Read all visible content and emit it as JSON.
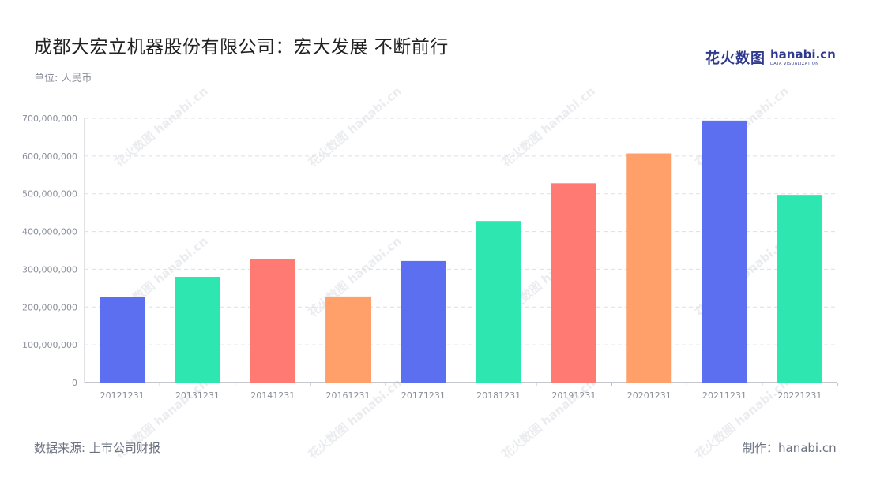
{
  "header": {
    "title": "成都大宏立机器股份有限公司：宏大发展 不断前行",
    "unit": "单位: 人民币"
  },
  "logo": {
    "cn": "花火数图",
    "en": "hanabi.cn",
    "en_sub": "DATA VISUALIZATION"
  },
  "footer": {
    "source": "数据来源: 上市公司财报",
    "credit": "制作：hanabi.cn"
  },
  "watermark_text": "花火数图 hanabi.cn",
  "chart_data": {
    "type": "bar",
    "title": "成都大宏立机器股份有限公司：宏大发展 不断前行",
    "xlabel": "",
    "ylabel": "",
    "categories": [
      "20121231",
      "20131231",
      "20141231",
      "20161231",
      "20171231",
      "20181231",
      "20191231",
      "20201231",
      "20211231",
      "20221231"
    ],
    "values": [
      226000000,
      280000000,
      327000000,
      228000000,
      322000000,
      428000000,
      528000000,
      607000000,
      694000000,
      497000000
    ],
    "bar_colors": [
      "#5b6ff0",
      "#2ee6b0",
      "#ff7a72",
      "#ffa06b",
      "#5b6ff0",
      "#2ee6b0",
      "#ff7a72",
      "#ffa06b",
      "#5b6ff0",
      "#2ee6b0"
    ],
    "ylim": [
      0,
      700000000
    ],
    "yticks": [
      0,
      100000000,
      200000000,
      300000000,
      400000000,
      500000000,
      600000000,
      700000000
    ],
    "ytick_labels": [
      "0",
      "100,000,000",
      "200,000,000",
      "300,000,000",
      "400,000,000",
      "500,000,000",
      "600,000,000",
      "700,000,000"
    ],
    "grid": true,
    "legend": "none"
  }
}
